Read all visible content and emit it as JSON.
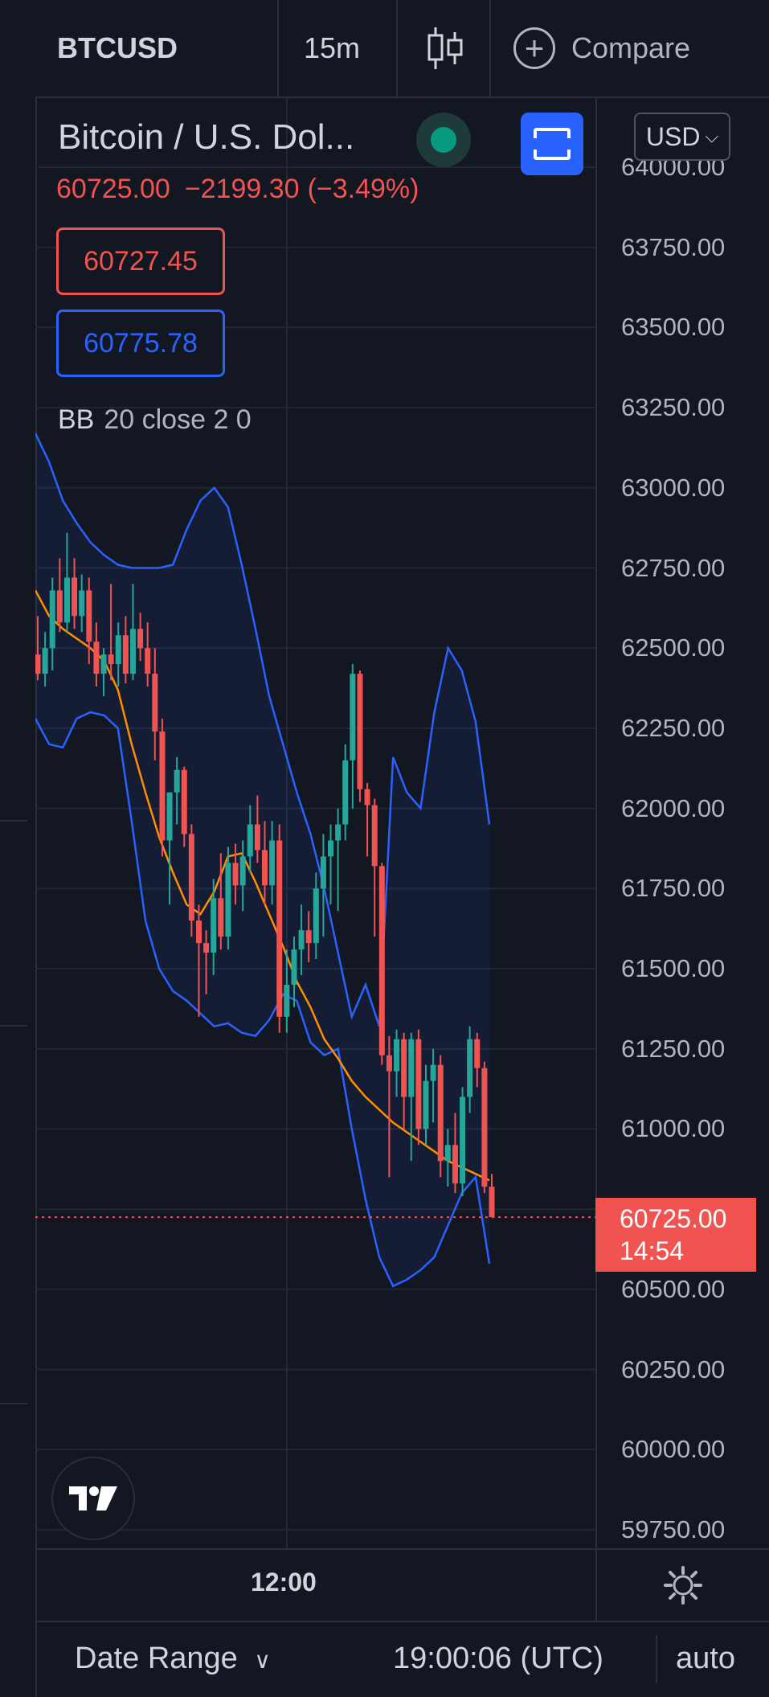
{
  "toolbar": {
    "symbol": "BTCUSD",
    "interval": "15m",
    "chart_type_icon": "candles-icon",
    "compare_label": "Compare"
  },
  "legend": {
    "title": "Bitcoin / U.S. Dol...",
    "last_price": "60725.00",
    "change": "−2199.30",
    "change_pct": "(−3.49%)",
    "sell_price": "60727.45",
    "buy_price": "60775.78",
    "indicator_name": "BB",
    "indicator_params": "20 close 2 0"
  },
  "currency_button": "USD",
  "price_axis": {
    "ticks": [
      "64000.00",
      "63750.00",
      "63500.00",
      "63250.00",
      "63000.00",
      "62750.00",
      "62500.00",
      "62250.00",
      "62000.00",
      "61750.00",
      "61500.00",
      "61250.00",
      "61000.00",
      "60500.00",
      "60250.00",
      "60000.00",
      "59750.00"
    ]
  },
  "price_tag": {
    "price": "60725.00",
    "countdown": "14:54"
  },
  "time_axis": {
    "label": "12:00"
  },
  "bottom": {
    "date_range": "Date Range",
    "clock": "19:00:06 (UTC)",
    "scale_mode": "auto"
  },
  "colors": {
    "up": "#26a69a",
    "down": "#f05350",
    "band": "#2962ff",
    "basis": "#ff8f00",
    "background": "#131722",
    "accent": "#2962ff"
  },
  "chart_data": {
    "type": "candlestick",
    "symbol": "BTCUSD",
    "interval": "15m",
    "ylim": [
      59750,
      64000
    ],
    "last_price": 60725.0,
    "candles": [
      {
        "o": 62480,
        "h": 62600,
        "l": 62400,
        "c": 62420
      },
      {
        "o": 62420,
        "h": 62550,
        "l": 62380,
        "c": 62500
      },
      {
        "o": 62500,
        "h": 62720,
        "l": 62430,
        "c": 62680
      },
      {
        "o": 62680,
        "h": 62780,
        "l": 62550,
        "c": 62580
      },
      {
        "o": 62580,
        "h": 62860,
        "l": 62550,
        "c": 62720
      },
      {
        "o": 62720,
        "h": 62780,
        "l": 62560,
        "c": 62600
      },
      {
        "o": 62600,
        "h": 62730,
        "l": 62550,
        "c": 62680
      },
      {
        "o": 62680,
        "h": 62720,
        "l": 62450,
        "c": 62520
      },
      {
        "o": 62520,
        "h": 62580,
        "l": 62380,
        "c": 62420
      },
      {
        "o": 62420,
        "h": 62500,
        "l": 62350,
        "c": 62480
      },
      {
        "o": 62480,
        "h": 62700,
        "l": 62400,
        "c": 62450
      },
      {
        "o": 62450,
        "h": 62580,
        "l": 62380,
        "c": 62540
      },
      {
        "o": 62540,
        "h": 62600,
        "l": 62390,
        "c": 62420
      },
      {
        "o": 62420,
        "h": 62700,
        "l": 62400,
        "c": 62560
      },
      {
        "o": 62560,
        "h": 62610,
        "l": 62460,
        "c": 62500
      },
      {
        "o": 62500,
        "h": 62580,
        "l": 62380,
        "c": 62420
      },
      {
        "o": 62420,
        "h": 62500,
        "l": 62150,
        "c": 62240
      },
      {
        "o": 62240,
        "h": 62280,
        "l": 61850,
        "c": 61900
      },
      {
        "o": 61900,
        "h": 62050,
        "l": 61700,
        "c": 62050
      },
      {
        "o": 62050,
        "h": 62160,
        "l": 61950,
        "c": 62120
      },
      {
        "o": 62120,
        "h": 62130,
        "l": 61880,
        "c": 61920
      },
      {
        "o": 61920,
        "h": 61950,
        "l": 61600,
        "c": 61650
      },
      {
        "o": 61650,
        "h": 61700,
        "l": 61350,
        "c": 61580
      },
      {
        "o": 61580,
        "h": 61620,
        "l": 61420,
        "c": 61550
      },
      {
        "o": 61550,
        "h": 61780,
        "l": 61480,
        "c": 61720
      },
      {
        "o": 61720,
        "h": 61860,
        "l": 61560,
        "c": 61600
      },
      {
        "o": 61600,
        "h": 61880,
        "l": 61560,
        "c": 61830
      },
      {
        "o": 61830,
        "h": 61890,
        "l": 61700,
        "c": 61760
      },
      {
        "o": 61760,
        "h": 61900,
        "l": 61680,
        "c": 61850
      },
      {
        "o": 61850,
        "h": 62010,
        "l": 61800,
        "c": 61950
      },
      {
        "o": 61950,
        "h": 62040,
        "l": 61830,
        "c": 61870
      },
      {
        "o": 61870,
        "h": 61960,
        "l": 61700,
        "c": 61760
      },
      {
        "o": 61760,
        "h": 61960,
        "l": 61700,
        "c": 61900
      },
      {
        "o": 61900,
        "h": 61950,
        "l": 61300,
        "c": 61350
      },
      {
        "o": 61350,
        "h": 61560,
        "l": 61300,
        "c": 61450
      },
      {
        "o": 61450,
        "h": 61600,
        "l": 61380,
        "c": 61560
      },
      {
        "o": 61560,
        "h": 61700,
        "l": 61480,
        "c": 61620
      },
      {
        "o": 61620,
        "h": 61680,
        "l": 61520,
        "c": 61580
      },
      {
        "o": 61580,
        "h": 61800,
        "l": 61530,
        "c": 61750
      },
      {
        "o": 61750,
        "h": 61920,
        "l": 61600,
        "c": 61850
      },
      {
        "o": 61850,
        "h": 61950,
        "l": 61700,
        "c": 61900
      },
      {
        "o": 61900,
        "h": 62000,
        "l": 61680,
        "c": 61950
      },
      {
        "o": 61950,
        "h": 62200,
        "l": 61900,
        "c": 62150
      },
      {
        "o": 62150,
        "h": 62450,
        "l": 62000,
        "c": 62420
      },
      {
        "o": 62420,
        "h": 62430,
        "l": 62020,
        "c": 62060
      },
      {
        "o": 62060,
        "h": 62080,
        "l": 61850,
        "c": 62010
      },
      {
        "o": 62010,
        "h": 62030,
        "l": 61600,
        "c": 61820
      },
      {
        "o": 61820,
        "h": 61830,
        "l": 61200,
        "c": 61230
      },
      {
        "o": 61230,
        "h": 61290,
        "l": 60850,
        "c": 61180
      },
      {
        "o": 61180,
        "h": 61310,
        "l": 61100,
        "c": 61280
      },
      {
        "o": 61280,
        "h": 61300,
        "l": 61000,
        "c": 61100
      },
      {
        "o": 61100,
        "h": 61300,
        "l": 60900,
        "c": 61280
      },
      {
        "o": 61280,
        "h": 61310,
        "l": 60950,
        "c": 61000
      },
      {
        "o": 61000,
        "h": 61200,
        "l": 60950,
        "c": 61150
      },
      {
        "o": 61150,
        "h": 61250,
        "l": 61020,
        "c": 61200
      },
      {
        "o": 61200,
        "h": 61230,
        "l": 60850,
        "c": 60900
      },
      {
        "o": 60900,
        "h": 61000,
        "l": 60820,
        "c": 60950
      },
      {
        "o": 60950,
        "h": 61050,
        "l": 60800,
        "c": 60830
      },
      {
        "o": 60830,
        "h": 61130,
        "l": 60790,
        "c": 61100
      },
      {
        "o": 61100,
        "h": 61320,
        "l": 61050,
        "c": 61280
      },
      {
        "o": 61280,
        "h": 61300,
        "l": 61130,
        "c": 61190
      },
      {
        "o": 61190,
        "h": 61210,
        "l": 60800,
        "c": 60820
      },
      {
        "o": 60820,
        "h": 60860,
        "l": 60725,
        "c": 60725
      }
    ],
    "bollinger": {
      "period": 20,
      "source": "close",
      "stddev": 2,
      "offset": 0,
      "upper": [
        63170,
        63080,
        62960,
        62890,
        62830,
        62790,
        62760,
        62750,
        62750,
        62750,
        62760,
        62870,
        62960,
        63000,
        62940,
        62760,
        62560,
        62350,
        62200,
        62050,
        61920,
        61750,
        61550,
        61350,
        61450,
        61320,
        62160,
        62050,
        62000,
        62300,
        62500,
        62430,
        62270,
        61950
      ],
      "basis": [
        62680,
        62600,
        62560,
        62530,
        62500,
        62460,
        62370,
        62200,
        62050,
        61910,
        61800,
        61700,
        61670,
        61740,
        61850,
        61860,
        61770,
        61670,
        61570,
        61460,
        61380,
        61280,
        61220,
        61150,
        61100,
        61060,
        61020,
        60990,
        60960,
        60930,
        60900,
        60880,
        60860,
        60840
      ],
      "lower": [
        62280,
        62200,
        62190,
        62280,
        62300,
        62290,
        62250,
        61960,
        61650,
        61500,
        61430,
        61400,
        61360,
        61320,
        61330,
        61300,
        61290,
        61340,
        61420,
        61400,
        61270,
        61230,
        61250,
        61000,
        60780,
        60600,
        60510,
        60530,
        60560,
        60600,
        60700,
        60800,
        60850,
        60580
      ]
    },
    "time_label": "12:00"
  }
}
